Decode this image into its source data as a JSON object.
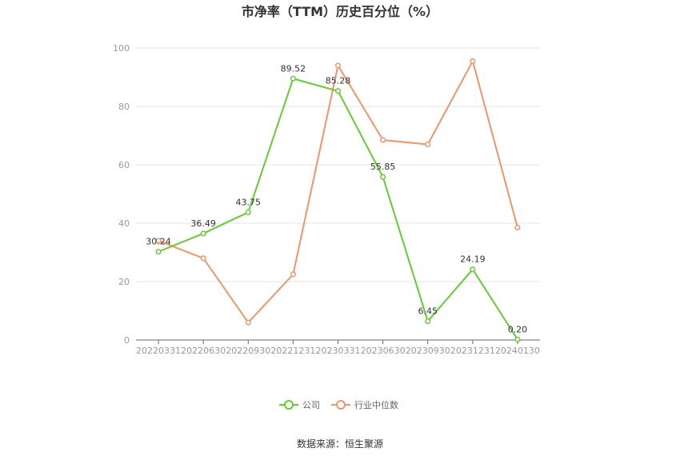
{
  "chart_data": {
    "type": "line",
    "title": "市净率（TTM）历史百分位（%）",
    "categories": [
      "20220331",
      "20220630",
      "20220930",
      "20221231",
      "20230331",
      "20230630",
      "20230930",
      "20231231",
      "20240130"
    ],
    "ylim": [
      0,
      100
    ],
    "yticks": [
      "0",
      "20",
      "40",
      "60",
      "80",
      "100"
    ],
    "grid": true,
    "legend_position": "bottom-center",
    "series": [
      {
        "name": "公司",
        "color": "#66cc33",
        "values": [
          30.24,
          36.49,
          43.75,
          89.52,
          85.28,
          55.85,
          6.45,
          24.19,
          0.2
        ],
        "labels": [
          "30.24",
          "36.49",
          "43.75",
          "89.52",
          "85.28",
          "55.85",
          "6.45",
          "24.19",
          "0.20"
        ]
      },
      {
        "name": "行业中位数",
        "color": "#f0946a",
        "values": [
          34.0,
          28.0,
          6.0,
          22.5,
          94.0,
          68.5,
          67.0,
          95.5,
          38.5
        ]
      }
    ]
  },
  "source": "数据来源：恒生聚源"
}
